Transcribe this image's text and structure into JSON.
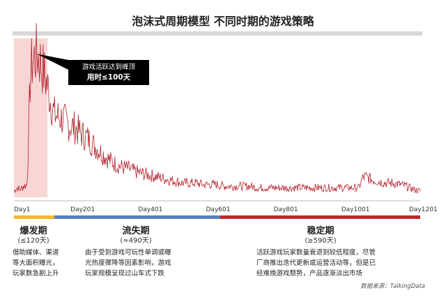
{
  "title": "泡沫式周期模型  不同时期的游戏策略",
  "callout": {
    "line1": "游戏活跃达到峰顶",
    "line2": "用时≤100天"
  },
  "phases": [
    {
      "name": "爆发期",
      "duration": "(≤120天)",
      "desc": [
        "借助媒体、渠道",
        "等大面积曝光，",
        "玩家数急剧上升"
      ],
      "color": "#f2b82e"
    },
    {
      "name": "流失期",
      "duration": "(≈490天)",
      "desc": [
        "由于受到游戏可玩性单调或曝",
        "光热度骤降等因素影响，游戏",
        "玩家规模呈现过山车式下跌"
      ],
      "color": "#5b7fc0"
    },
    {
      "name": "稳定期",
      "duration": "(≥590天)",
      "desc": [
        "活跃游戏玩家数量衰退到较低程度，尽管",
        "厂商推出迭代更新或运营活动等，但是已",
        "经难挽游戏颓势，产品逐渐淡出市场"
      ],
      "color": "#c0272d"
    }
  ],
  "source": "数据来源：TalkingData",
  "colors": {
    "line": "#b3202a",
    "highlight": "#f9d6d6",
    "topbar": "#d8d8d8"
  },
  "chart_data": {
    "type": "line",
    "title": "",
    "xlabel": "",
    "ylabel": "",
    "x_ticks": [
      "Day1",
      "Day201",
      "Day401",
      "Day601",
      "Day801",
      "Day1001",
      "Day1201"
    ],
    "xlim": [
      1,
      1201
    ],
    "ylim": [
      0,
      100
    ],
    "highlight_range": [
      1,
      100
    ],
    "series": [
      {
        "x": [
          1,
          10,
          20,
          30,
          40,
          50,
          60,
          70,
          80,
          90,
          100,
          110,
          120,
          140,
          160,
          180,
          200,
          220,
          240,
          260,
          280,
          300,
          320,
          340,
          360,
          380,
          400,
          420,
          440,
          460,
          480,
          500,
          520,
          540,
          560,
          580,
          600,
          620,
          640,
          660,
          680,
          700,
          720,
          740,
          760,
          780,
          800,
          820,
          840,
          860,
          880,
          900,
          920,
          940,
          960,
          980,
          1000,
          1020,
          1030,
          1040,
          1060,
          1080,
          1100,
          1120,
          1140,
          1160,
          1180,
          1200
        ],
        "y": [
          4,
          6,
          5,
          7,
          8,
          80,
          88,
          90,
          85,
          78,
          70,
          60,
          52,
          50,
          46,
          44,
          40,
          37,
          32,
          28,
          24,
          21,
          19,
          18,
          16,
          15,
          14,
          13,
          12,
          11,
          10,
          9,
          9,
          9,
          8,
          8,
          8,
          7,
          7,
          7,
          7,
          7,
          6,
          6,
          6,
          6,
          6,
          6,
          6,
          6,
          6,
          6,
          6,
          6,
          6,
          6,
          6,
          6,
          12,
          13,
          11,
          10,
          9,
          9,
          8,
          7,
          5,
          4
        ]
      }
    ]
  }
}
